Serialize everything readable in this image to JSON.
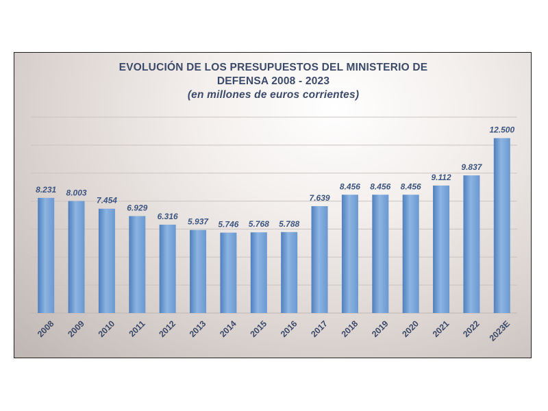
{
  "chart_data": {
    "type": "bar",
    "title": "EVOLUCIÓN DE LOS PRESUPUESTOS DEL MINISTERIO DE DEFENSA 2008 - 2023",
    "title_lines": [
      "EVOLUCIÓN DE LOS PRESUPUESTOS DEL MINISTERIO DE",
      "DEFENSA 2008 - 2023"
    ],
    "subtitle": "(en millones de euros corrientes)",
    "categories": [
      "2008",
      "2009",
      "2010",
      "2011",
      "2012",
      "2013",
      "2014",
      "2015",
      "2016",
      "2017",
      "2018",
      "2019",
      "2020",
      "2021",
      "2022",
      "2023E"
    ],
    "values": [
      8231,
      8003,
      7454,
      6929,
      6316,
      5937,
      5746,
      5768,
      5788,
      7639,
      8456,
      8456,
      8456,
      9112,
      9837,
      12500
    ],
    "data_labels": [
      "8.231",
      "8.003",
      "7.454",
      "6.929",
      "6.316",
      "5.937",
      "5.746",
      "5.768",
      "5.788",
      "7.639",
      "8.456",
      "8.456",
      "8.456",
      "9.112",
      "9.837",
      "12.500"
    ],
    "ylim": [
      0,
      14000
    ],
    "grid": true,
    "legend": "none",
    "xlabel": "",
    "ylabel": "",
    "colors": {
      "bar": "#6a98d0",
      "bar_highlight": "#8cb4e2",
      "bar_shadow": "#4f7fbd",
      "label": "#3c5480",
      "title": "#3c4a6a",
      "gridline": "#c9c3c1"
    }
  }
}
